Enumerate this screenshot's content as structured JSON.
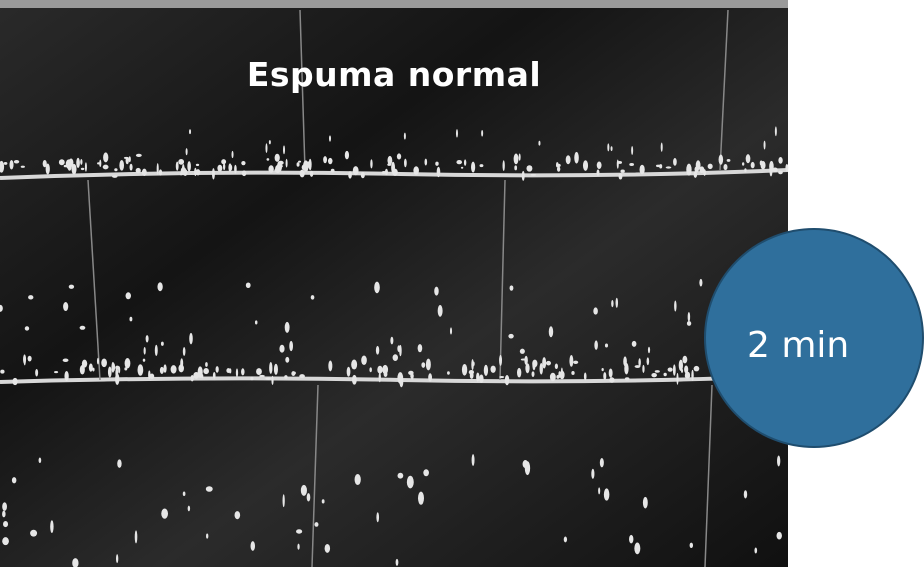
{
  "title": "Espuma normal",
  "badge": "2 min"
}
